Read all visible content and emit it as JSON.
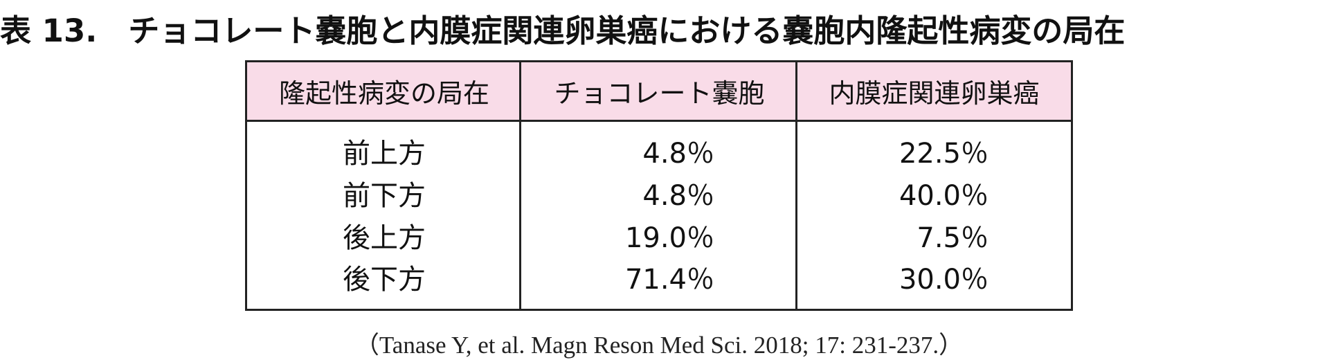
{
  "title": "表 13.　チョコレート嚢胞と内膜症関連卵巣癌における嚢胞内隆起性病変の局在",
  "table": {
    "header": [
      "隆起性病変の局在",
      "チョコレート嚢胞",
      "内膜症関連卵巣癌"
    ],
    "rows": [
      [
        "前上方",
        "4.8％",
        "22.5％"
      ],
      [
        "前下方",
        "4.8％",
        "40.0％"
      ],
      [
        "後上方",
        "19.0％",
        "7.5％"
      ],
      [
        "後下方",
        "71.4％",
        "30.0％"
      ]
    ]
  },
  "citation": "（Tanase Y, et al. Magn Reson Med Sci. 2018; 17: 231-237.）"
}
